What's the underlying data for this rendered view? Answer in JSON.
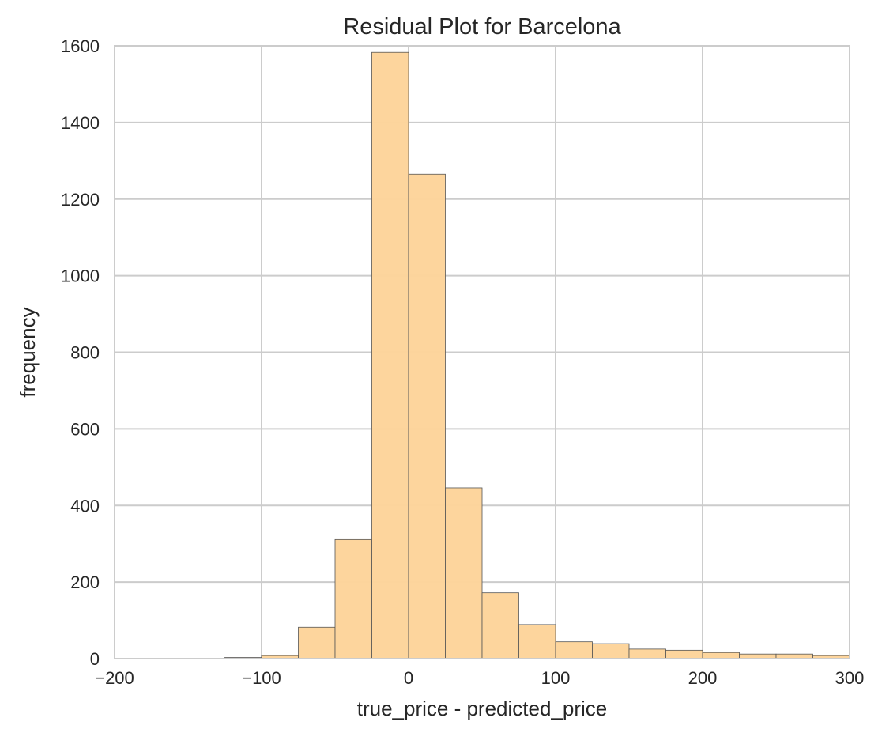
{
  "chart_data": {
    "type": "bar",
    "subtype": "histogram",
    "title": "Residual Plot for Barcelona",
    "xlabel": "true_price - predicted_price",
    "ylabel": "frequency",
    "xlim": [
      -200,
      300
    ],
    "ylim": [
      0,
      1600
    ],
    "xticks": [
      -200,
      -100,
      0,
      100,
      200,
      300
    ],
    "xtick_labels": [
      "−200",
      "−100",
      "0",
      "100",
      "200",
      "300"
    ],
    "yticks": [
      0,
      200,
      400,
      600,
      800,
      1000,
      1200,
      1400,
      1600
    ],
    "ytick_labels": [
      "0",
      "200",
      "400",
      "600",
      "800",
      "1000",
      "1200",
      "1400",
      "1600"
    ],
    "grid": true,
    "bar_color": "#fdd49a",
    "bar_edge_color": "#555555",
    "bins": [
      {
        "x0": -125,
        "x1": -100,
        "count": 3
      },
      {
        "x0": -100,
        "x1": -75,
        "count": 8
      },
      {
        "x0": -75,
        "x1": -50,
        "count": 82
      },
      {
        "x0": -50,
        "x1": -25,
        "count": 311
      },
      {
        "x0": -25,
        "x1": 0,
        "count": 1583
      },
      {
        "x0": 0,
        "x1": 25,
        "count": 1265
      },
      {
        "x0": 25,
        "x1": 50,
        "count": 446
      },
      {
        "x0": 50,
        "x1": 75,
        "count": 172
      },
      {
        "x0": 75,
        "x1": 100,
        "count": 89
      },
      {
        "x0": 100,
        "x1": 125,
        "count": 44
      },
      {
        "x0": 125,
        "x1": 150,
        "count": 39
      },
      {
        "x0": 150,
        "x1": 175,
        "count": 25
      },
      {
        "x0": 175,
        "x1": 200,
        "count": 22
      },
      {
        "x0": 200,
        "x1": 225,
        "count": 16
      },
      {
        "x0": 225,
        "x1": 250,
        "count": 12
      },
      {
        "x0": 250,
        "x1": 275,
        "count": 12
      },
      {
        "x0": 275,
        "x1": 300,
        "count": 8
      }
    ]
  }
}
